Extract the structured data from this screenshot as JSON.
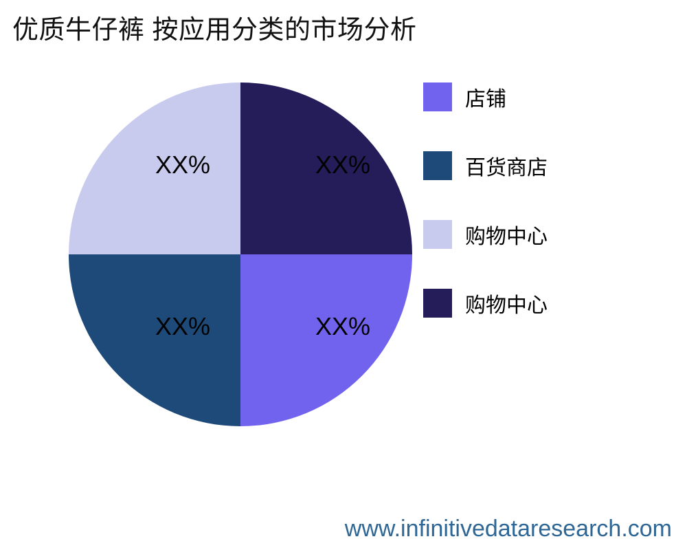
{
  "chart_data": {
    "type": "pie",
    "title": "优质牛仔裤 按应用分类的市场分析",
    "start_angle": "top",
    "direction": "clockwise",
    "legend_position": "right",
    "slices": [
      {
        "label": "购物中心",
        "display_label": "XX%",
        "value": 25,
        "color": "#251d5a",
        "quadrant": "top-right"
      },
      {
        "label": "店铺",
        "display_label": "XX%",
        "value": 25,
        "color": "#7163ed",
        "quadrant": "bottom-right"
      },
      {
        "label": "百货商店",
        "display_label": "XX%",
        "value": 25,
        "color": "#1e4a7a",
        "quadrant": "bottom-left"
      },
      {
        "label": "购物中心",
        "display_label": "XX%",
        "value": 25,
        "color": "#c8caee",
        "quadrant": "top-left"
      }
    ]
  },
  "legend": {
    "items": [
      {
        "label": "店铺",
        "color": "#7163ed"
      },
      {
        "label": "百货商店",
        "color": "#1e4a7a"
      },
      {
        "label": "购物中心",
        "color": "#c8caee"
      },
      {
        "label": "购物中心",
        "color": "#251d5a"
      }
    ]
  },
  "footer": {
    "website": "www.infinitivedataresearch.com"
  }
}
